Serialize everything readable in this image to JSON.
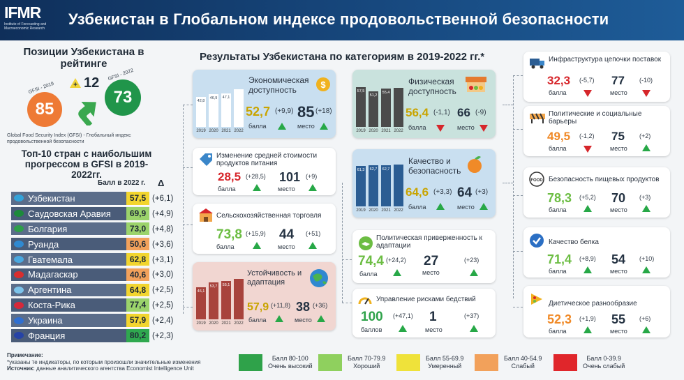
{
  "header": {
    "logo": "IFMR",
    "logo_sub": "Institute of Forecasting and Macroeconomic Research",
    "title": "Узбекистан в Глобальном индексе продовольственной безопасности"
  },
  "ranking": {
    "title": "Позиции Узбекистана в рейтинге",
    "label_2019": "GFSI - 2019",
    "value_2019": "85",
    "label_2022": "GFSI - 2022",
    "value_2022": "73",
    "plus": "12",
    "caption": "Global Food Security Index (GFSI) - Глобальный индекс продовольственной безопасности"
  },
  "top10": {
    "title": "Топ-10 стран с наибольшим прогрессом в GFSI в 2019-2022гг.",
    "score_header": "Балл в 2022 г.",
    "delta_header": "Δ",
    "rows": [
      {
        "name": "Узбекистан",
        "score": "57,5",
        "delta": "(+6,1)",
        "color": "#f2d52f",
        "flag": "#33a2d9"
      },
      {
        "name": "Саудовская Аравия",
        "score": "69,9",
        "delta": "(+4,9)",
        "color": "#9bd36b",
        "flag": "#1c8a3b"
      },
      {
        "name": "Болгария",
        "score": "73,0",
        "delta": "(+4,8)",
        "color": "#9bd36b",
        "flag": "#2e9f4a"
      },
      {
        "name": "Руанда",
        "score": "50,6",
        "delta": "(+3,6)",
        "color": "#f2a15b",
        "flag": "#2f89d1"
      },
      {
        "name": "Гватемала",
        "score": "62,8",
        "delta": "(+3,1)",
        "color": "#f2d52f",
        "flag": "#4aa8e0"
      },
      {
        "name": "Мадагаскар",
        "score": "40,6",
        "delta": "(+3,0)",
        "color": "#f2a15b",
        "flag": "#d92e2e"
      },
      {
        "name": "Аргентина",
        "score": "64,8",
        "delta": "(+2,5)",
        "color": "#f2d52f",
        "flag": "#7cc3ea"
      },
      {
        "name": "Коста-Рика",
        "score": "77,4",
        "delta": "(+2,5)",
        "color": "#9bd36b",
        "flag": "#d7283a"
      },
      {
        "name": "Украина",
        "score": "57,9",
        "delta": "(+2,4)",
        "color": "#f2d52f",
        "flag": "#2f6fd1"
      },
      {
        "name": "Франция",
        "score": "80,2",
        "delta": "(+2,3)",
        "color": "#2fa84f",
        "flag": "#2643a6"
      }
    ]
  },
  "notes": {
    "label": "Примечание:",
    "text": "*указаны те индикаторы, по которым произошли значительные изменения",
    "source_label": "Источник:",
    "source": "данные аналитического агентства Economist Intelligence Unit"
  },
  "categories": {
    "title": "Результаты Узбекистана по категориям в 2019-2022 гг.*",
    "ball": "балла",
    "ballov": "баллов",
    "mesto": "место",
    "years": [
      "2019",
      "2020",
      "2021",
      "2022"
    ],
    "econ": {
      "title": "Экономическая доступность",
      "score": "52,7",
      "score_delta": "(+9,9)",
      "rank": "85",
      "rank_delta": "(+18)",
      "bars": [
        "42,8",
        "46,9",
        "47,1",
        ""
      ],
      "bar_values": [
        42.8,
        46.9,
        47.1,
        52.7
      ]
    },
    "price": {
      "title": "Изменение средней стоимости продуктов питания",
      "score": "28,5",
      "score_delta": "(+28,5)",
      "rank": "101",
      "rank_delta": "(+9)"
    },
    "trade": {
      "title": "Сельскохозяйственная торговля",
      "score": "73,8",
      "score_delta": "(+15,9)",
      "rank": "44",
      "rank_delta": "(+51)"
    },
    "sustain": {
      "title": "Устойчивость и адаптация",
      "score": "57,9",
      "score_delta": "(+11,8)",
      "rank": "38",
      "rank_delta": "(+36)",
      "bars": [
        "46,1",
        "53,7",
        "55,1",
        ""
      ],
      "bar_values": [
        46.1,
        53.7,
        55.1,
        57.9
      ]
    },
    "phys": {
      "title": "Физическая доступность",
      "score": "56,4",
      "score_delta": "(-1,1)",
      "rank": "66",
      "rank_delta": "(-9)",
      "bars": [
        "57,5",
        "51,2",
        "55,4",
        ""
      ],
      "bar_values": [
        57.5,
        51.2,
        55.4,
        56.4
      ]
    },
    "quality": {
      "title": "Качество и безопасность",
      "score": "64,6",
      "score_delta": "(+3,3)",
      "rank": "64",
      "rank_delta": "(+3)",
      "bars": [
        "61,3",
        "62,7",
        "62,7",
        ""
      ],
      "bar_values": [
        61.3,
        62.7,
        62.7,
        64.6
      ]
    },
    "political": {
      "title": "Политическая приверженность к адаптации",
      "score": "74,4",
      "score_delta": "(+24,2)",
      "rank": "27",
      "rank_delta": "(+23)"
    },
    "disaster": {
      "title": "Управление рисками бедствий",
      "score": "100",
      "score_delta": "(+47,1)",
      "rank": "1",
      "rank_delta": "(+37)"
    },
    "infra": {
      "title": "Инфраструктура цепочки поставок",
      "score": "32,3",
      "score_delta": "(-5,7)",
      "rank": "77",
      "rank_delta": "(-10)"
    },
    "barriers": {
      "title": "Политические и социальные барьеры",
      "score": "49,5",
      "score_delta": "(-1,2)",
      "rank": "75",
      "rank_delta": "(+2)"
    },
    "foodsafety": {
      "title": "Безопасность пищевых продуктов",
      "score": "78,3",
      "score_delta": "(+5,2)",
      "rank": "70",
      "rank_delta": "(+3)"
    },
    "protein": {
      "title": "Качество белка",
      "score": "71,4",
      "score_delta": "(+8,9)",
      "rank": "54",
      "rank_delta": "(+10)"
    },
    "diet": {
      "title": "Диетическое разнообразие",
      "score": "52,3",
      "score_delta": "(+1,9)",
      "rank": "55",
      "rank_delta": "(+6)"
    }
  },
  "legend": [
    {
      "range": "Балл 80-100",
      "label": "Очень высокий",
      "color": "#2fa24a"
    },
    {
      "range": "Балл 70-79.9",
      "label": "Хороший",
      "color": "#8fd05e"
    },
    {
      "range": "Балл 55-69.9",
      "label": "Умеренный",
      "color": "#efe23a"
    },
    {
      "range": "Балл 40-54.9",
      "label": "Слабый",
      "color": "#f2a15b"
    },
    {
      "range": "Балл 0-39.9",
      "label": "Очень слабый",
      "color": "#e0262b"
    }
  ]
}
